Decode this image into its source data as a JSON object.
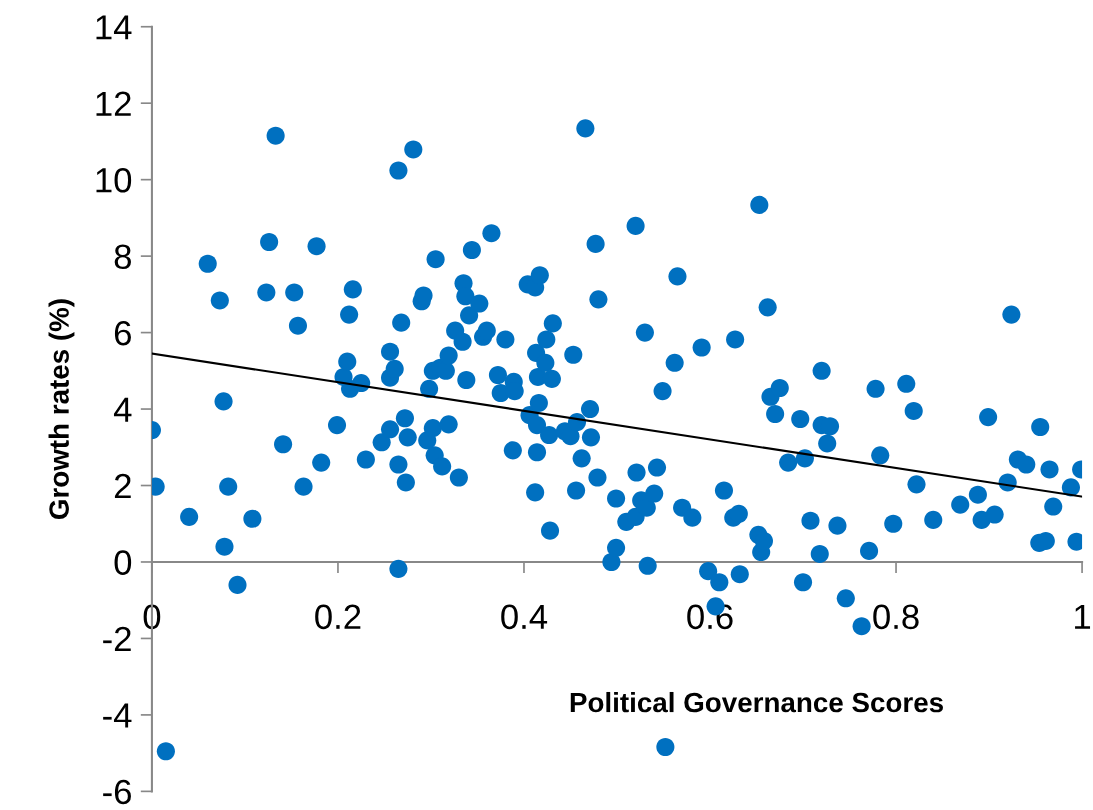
{
  "chart_data": {
    "type": "scatter",
    "xlabel": "Political Governance Scores",
    "ylabel": "Growth rates (%)",
    "xlim": [
      0,
      1
    ],
    "ylim": [
      -6,
      14
    ],
    "xticks": [
      0,
      0.2,
      0.4,
      0.6,
      0.8,
      1
    ],
    "yticks": [
      -6,
      -4,
      -2,
      0,
      2,
      4,
      6,
      8,
      10,
      12,
      14
    ],
    "grid": false,
    "legend": false,
    "series": [
      {
        "marker": "circle",
        "color": "#0070c0",
        "x": [
          0.0,
          0.004,
          0.015,
          0.04,
          0.06,
          0.073,
          0.077,
          0.078,
          0.082,
          0.092,
          0.108,
          0.123,
          0.126,
          0.133,
          0.141,
          0.153,
          0.157,
          0.163,
          0.177,
          0.182,
          0.199,
          0.206,
          0.21,
          0.212,
          0.213,
          0.216,
          0.225,
          0.23,
          0.247,
          0.256,
          0.256,
          0.256,
          0.261,
          0.265,
          0.265,
          0.265,
          0.268,
          0.272,
          0.273,
          0.275,
          0.281,
          0.29,
          0.292,
          0.296,
          0.298,
          0.302,
          0.302,
          0.304,
          0.305,
          0.31,
          0.312,
          0.316,
          0.319,
          0.319,
          0.326,
          0.33,
          0.334,
          0.335,
          0.337,
          0.338,
          0.341,
          0.344,
          0.352,
          0.356,
          0.36,
          0.365,
          0.372,
          0.375,
          0.38,
          0.388,
          0.389,
          0.39,
          0.404,
          0.406,
          0.412,
          0.412,
          0.413,
          0.414,
          0.414,
          0.415,
          0.416,
          0.417,
          0.423,
          0.424,
          0.427,
          0.428,
          0.43,
          0.431,
          0.444,
          0.45,
          0.453,
          0.456,
          0.457,
          0.462,
          0.466,
          0.471,
          0.472,
          0.477,
          0.48,
          0.479,
          0.494,
          0.499,
          0.499,
          0.51,
          0.52,
          0.52,
          0.521,
          0.526,
          0.53,
          0.532,
          0.533,
          0.54,
          0.543,
          0.549,
          0.552,
          0.562,
          0.565,
          0.57,
          0.581,
          0.591,
          0.598,
          0.606,
          0.61,
          0.615,
          0.625,
          0.627,
          0.631,
          0.632,
          0.652,
          0.653,
          0.655,
          0.658,
          0.662,
          0.665,
          0.67,
          0.675,
          0.684,
          0.697,
          0.7,
          0.702,
          0.708,
          0.718,
          0.72,
          0.72,
          0.726,
          0.729,
          0.737,
          0.746,
          0.763,
          0.771,
          0.778,
          0.783,
          0.797,
          0.811,
          0.819,
          0.822,
          0.84,
          0.869,
          0.888,
          0.892,
          0.899,
          0.906,
          0.92,
          0.924,
          0.931,
          0.94,
          0.954,
          0.955,
          0.961,
          0.965,
          0.969,
          0.988,
          0.994,
          0.999
        ],
        "values": [
          3.45,
          1.97,
          -4.95,
          1.18,
          7.8,
          6.84,
          4.2,
          0.4,
          1.97,
          -0.6,
          1.13,
          7.05,
          8.37,
          11.15,
          3.08,
          7.05,
          6.18,
          1.97,
          8.26,
          2.6,
          3.58,
          4.84,
          5.24,
          6.47,
          4.53,
          7.13,
          4.68,
          2.68,
          3.13,
          5.5,
          4.82,
          3.47,
          5.05,
          2.55,
          -0.18,
          10.24,
          6.26,
          3.76,
          2.08,
          3.26,
          10.79,
          6.82,
          6.97,
          3.18,
          4.53,
          3.5,
          5.0,
          2.79,
          7.92,
          5.08,
          2.5,
          5.0,
          5.4,
          3.6,
          6.05,
          2.21,
          5.76,
          7.29,
          6.95,
          4.76,
          6.45,
          8.16,
          6.76,
          5.89,
          6.05,
          8.6,
          4.89,
          4.42,
          5.82,
          2.92,
          4.71,
          4.47,
          7.26,
          3.84,
          7.18,
          1.82,
          5.47,
          3.58,
          2.87,
          4.84,
          4.16,
          7.5,
          5.21,
          5.82,
          3.32,
          0.82,
          4.79,
          6.24,
          3.42,
          3.29,
          5.42,
          1.87,
          3.66,
          2.71,
          11.34,
          4.0,
          3.26,
          8.32,
          6.87,
          2.21,
          0.0,
          0.37,
          1.66,
          1.05,
          1.18,
          8.79,
          2.34,
          1.61,
          6.0,
          1.42,
          -0.1,
          1.79,
          2.47,
          4.47,
          -4.84,
          5.21,
          7.47,
          1.42,
          1.16,
          5.61,
          -0.24,
          -1.16,
          -0.53,
          1.87,
          1.16,
          5.82,
          1.26,
          -0.32,
          0.71,
          9.34,
          0.26,
          0.55,
          6.66,
          4.32,
          3.87,
          4.55,
          2.6,
          3.74,
          -0.53,
          2.71,
          1.08,
          0.21,
          5.0,
          3.58,
          3.1,
          3.55,
          0.95,
          -0.95,
          -1.68,
          0.29,
          4.53,
          2.79,
          1.0,
          4.66,
          3.95,
          2.03,
          1.1,
          1.5,
          1.76,
          1.1,
          3.79,
          1.24,
          2.08,
          6.47,
          2.68,
          2.55,
          0.5,
          3.53,
          0.55,
          2.42,
          1.45,
          1.95,
          0.53,
          2.42
        ]
      },
      {
        "type": "line",
        "marker": "none",
        "color": "#000000",
        "x": [
          0,
          1
        ],
        "values": [
          5.45,
          1.71
        ]
      }
    ]
  }
}
